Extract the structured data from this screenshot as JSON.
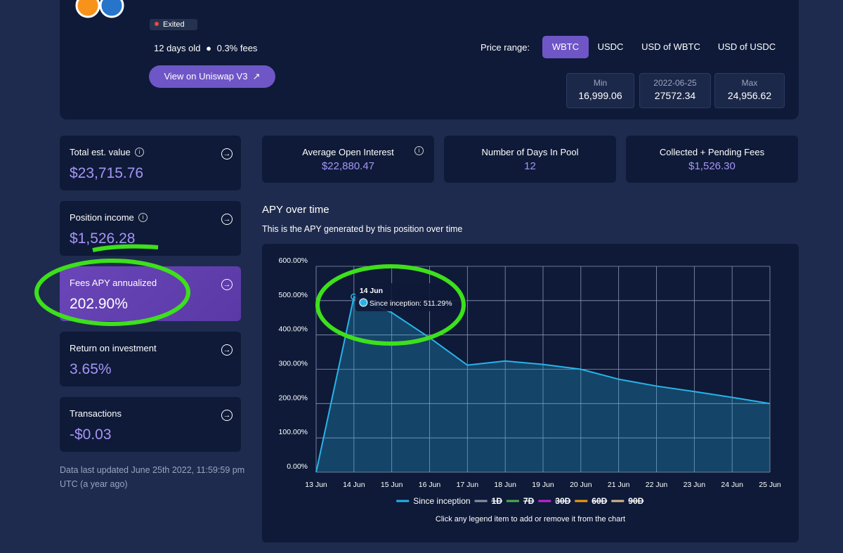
{
  "position": {
    "status": "Exited",
    "age": "12 days old",
    "fees": "0.3% fees",
    "uniswap_button": "View on Uniswap V3"
  },
  "price_range": {
    "label": "Price range:",
    "tabs": [
      "WBTC",
      "USDC",
      "USD of WBTC",
      "USD of USDC"
    ],
    "active": 0,
    "boxes": [
      {
        "title": "Min",
        "value": "16,999.06"
      },
      {
        "title": "2022-06-25",
        "value": "27572.34"
      },
      {
        "title": "Max",
        "value": "24,956.62"
      }
    ]
  },
  "side_cards": [
    {
      "label": "Total est. value",
      "value": "$23,715.76",
      "info": true
    },
    {
      "label": "Position income",
      "value": "$1,526.28",
      "info": true
    },
    {
      "label": "Fees APY annualized",
      "value": "202.90%",
      "highlight": true
    },
    {
      "label": "Return on investment",
      "value": "3.65%"
    },
    {
      "label": "Transactions",
      "value": "-$0.03"
    }
  ],
  "metrics": [
    {
      "label": "Average Open Interest",
      "value": "$22,880.47",
      "info": true
    },
    {
      "label": "Number of Days In Pool",
      "value": "12"
    },
    {
      "label": "Collected + Pending Fees",
      "value": "$1,526.30"
    }
  ],
  "updated": "Data last updated June 25th 2022, 11:59:59 pm UTC (a year ago)",
  "chart_data": {
    "type": "line",
    "title": "APY over time",
    "subtitle": "This is the APY generated by this position over time",
    "categories": [
      "13 Jun",
      "14 Jun",
      "15 Jun",
      "16 Jun",
      "17 Jun",
      "18 Jun",
      "19 Jun",
      "20 Jun",
      "21 Jun",
      "22 Jun",
      "23 Jun",
      "24 Jun",
      "25 Jun"
    ],
    "series": [
      {
        "name": "Since inception",
        "color": "#27b4e8",
        "values": [
          0,
          511.29,
          465,
          392,
          312,
          324,
          314,
          300,
          271,
          251,
          235,
          218,
          200
        ]
      },
      {
        "name": "1D",
        "color": "#8a90a6",
        "hidden": true
      },
      {
        "name": "7D",
        "color": "#4caf50",
        "hidden": true
      },
      {
        "name": "30D",
        "color": "#c026d3",
        "hidden": true
      },
      {
        "name": "60D",
        "color": "#f59e0b",
        "hidden": true
      },
      {
        "name": "90D",
        "color": "#d6b98a",
        "hidden": true
      }
    ],
    "ylim": [
      0,
      600
    ],
    "yticks": [
      {
        "value": 0,
        "label": "0.00%"
      },
      {
        "value": 100,
        "label": "100.00%"
      },
      {
        "value": 200,
        "label": "200.00%"
      },
      {
        "value": 300,
        "label": "300.00%"
      },
      {
        "value": 400,
        "label": "400.00%"
      },
      {
        "value": 500,
        "label": "500.00%"
      },
      {
        "value": 600,
        "label": "600.00%"
      }
    ],
    "grid": true,
    "tooltip": {
      "index": 1,
      "title": "14 Jun",
      "label": "Since inception: 511.29%"
    },
    "note": "Click any legend item to add or remove it from the chart"
  }
}
